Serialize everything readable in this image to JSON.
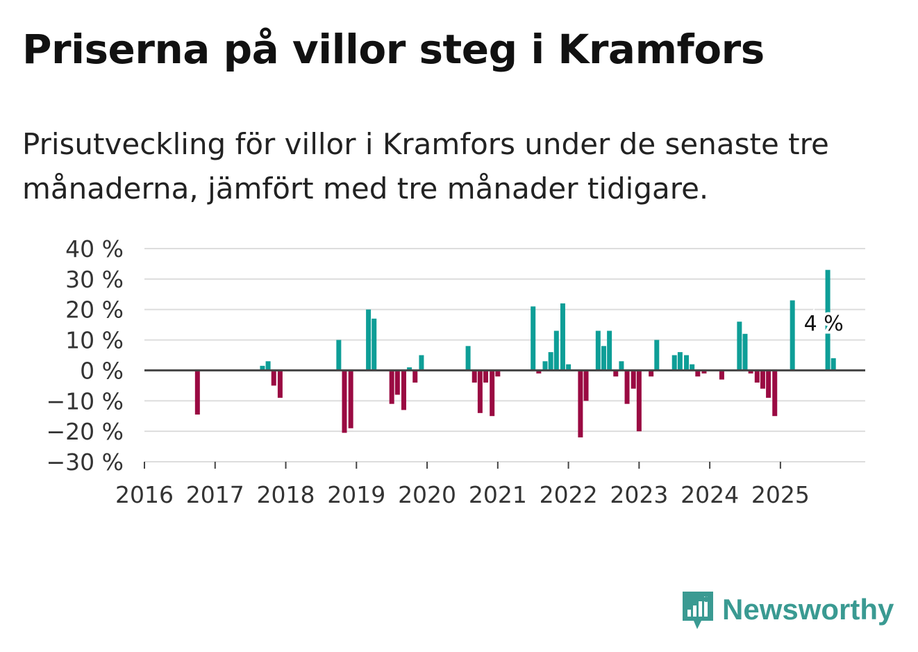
{
  "title": "Priserna på villor steg i Kramfors",
  "subtitle": "Prisutveckling för villor i Kramfors under de senaste tre månaderna, jämfört med tre månader tidigare.",
  "brand": {
    "name": "Newsworthy",
    "color": "#3a9a92",
    "icon": "newsworthy-logo-icon"
  },
  "colors": {
    "positive": "#0e9e97",
    "negative": "#9a0a42",
    "zero_line": "#444444",
    "grid": "#dddddd"
  },
  "chart_data": {
    "type": "bar",
    "title": "Priserna på villor steg i Kramfors",
    "xlabel": "",
    "ylabel": "",
    "ylim": [
      -30,
      40
    ],
    "y_ticks": [
      40,
      30,
      20,
      10,
      0,
      -10,
      -20,
      -30
    ],
    "y_tick_labels": [
      "40 %",
      "30 %",
      "20 %",
      "10 %",
      "0 %",
      "−10 %",
      "−20 %",
      "−30 %"
    ],
    "x_range": [
      2016,
      2026.2
    ],
    "x_ticks": [
      2016,
      2017,
      2018,
      2019,
      2020,
      2021,
      2022,
      2023,
      2024,
      2025
    ],
    "x_tick_labels": [
      "2016",
      "2017",
      "2018",
      "2019",
      "2020",
      "2021",
      "2022",
      "2023",
      "2024",
      "2025"
    ],
    "series": [
      {
        "name": "Prisutveckling",
        "unit": "%",
        "points": [
          {
            "x": 2016.75,
            "y": -14.5
          },
          {
            "x": 2017.67,
            "y": 1.5
          },
          {
            "x": 2017.75,
            "y": 3
          },
          {
            "x": 2017.83,
            "y": -5
          },
          {
            "x": 2017.92,
            "y": -9
          },
          {
            "x": 2018.75,
            "y": 10
          },
          {
            "x": 2018.83,
            "y": -20.5
          },
          {
            "x": 2018.92,
            "y": -19
          },
          {
            "x": 2019.17,
            "y": 20
          },
          {
            "x": 2019.25,
            "y": 17
          },
          {
            "x": 2019.5,
            "y": -11
          },
          {
            "x": 2019.58,
            "y": -8
          },
          {
            "x": 2019.67,
            "y": -13
          },
          {
            "x": 2019.75,
            "y": 1
          },
          {
            "x": 2019.83,
            "y": -4
          },
          {
            "x": 2019.92,
            "y": 5
          },
          {
            "x": 2020.58,
            "y": 8
          },
          {
            "x": 2020.67,
            "y": -4
          },
          {
            "x": 2020.75,
            "y": -14
          },
          {
            "x": 2020.83,
            "y": -4
          },
          {
            "x": 2020.92,
            "y": -15
          },
          {
            "x": 2021.0,
            "y": -2
          },
          {
            "x": 2021.5,
            "y": 21
          },
          {
            "x": 2021.58,
            "y": -1
          },
          {
            "x": 2021.67,
            "y": 3
          },
          {
            "x": 2021.75,
            "y": 6
          },
          {
            "x": 2021.83,
            "y": 13
          },
          {
            "x": 2021.92,
            "y": 22
          },
          {
            "x": 2022.0,
            "y": 2
          },
          {
            "x": 2022.17,
            "y": -22
          },
          {
            "x": 2022.25,
            "y": -10
          },
          {
            "x": 2022.42,
            "y": 13
          },
          {
            "x": 2022.5,
            "y": 8
          },
          {
            "x": 2022.58,
            "y": 13
          },
          {
            "x": 2022.67,
            "y": -2
          },
          {
            "x": 2022.75,
            "y": 3
          },
          {
            "x": 2022.83,
            "y": -11
          },
          {
            "x": 2022.92,
            "y": -6
          },
          {
            "x": 2023.0,
            "y": -20
          },
          {
            "x": 2023.17,
            "y": -2
          },
          {
            "x": 2023.25,
            "y": 10
          },
          {
            "x": 2023.5,
            "y": 5
          },
          {
            "x": 2023.58,
            "y": 6
          },
          {
            "x": 2023.67,
            "y": 5
          },
          {
            "x": 2023.75,
            "y": 2
          },
          {
            "x": 2023.83,
            "y": -2
          },
          {
            "x": 2023.92,
            "y": -1
          },
          {
            "x": 2024.17,
            "y": -3
          },
          {
            "x": 2024.42,
            "y": 16
          },
          {
            "x": 2024.5,
            "y": 12
          },
          {
            "x": 2024.58,
            "y": -1
          },
          {
            "x": 2024.67,
            "y": -4
          },
          {
            "x": 2024.75,
            "y": -6
          },
          {
            "x": 2024.83,
            "y": -9
          },
          {
            "x": 2024.92,
            "y": -15
          },
          {
            "x": 2025.17,
            "y": 23
          },
          {
            "x": 2025.67,
            "y": 33
          },
          {
            "x": 2025.75,
            "y": 4
          }
        ]
      }
    ],
    "annotations": [
      {
        "x": 2025.75,
        "y": 4,
        "label": "4 %"
      }
    ],
    "grid": true,
    "legend": "none"
  }
}
